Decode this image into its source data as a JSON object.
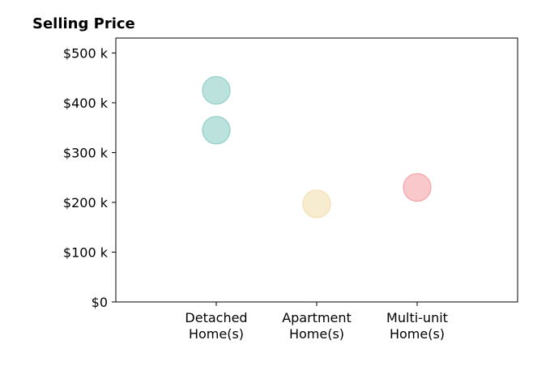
{
  "chart_data": {
    "type": "scatter",
    "title": "Selling Price",
    "xlabel": "",
    "ylabel": "",
    "categories": [
      [
        "Detached",
        "Home(s)"
      ],
      [
        "Apartment",
        "Home(s)"
      ],
      [
        "Multi-unit",
        "Home(s)"
      ]
    ],
    "ylim": [
      0,
      530000
    ],
    "yticks": [
      {
        "value": 0,
        "label": "$0"
      },
      {
        "value": 100000,
        "label": "$100 k"
      },
      {
        "value": 200000,
        "label": "$200 k"
      },
      {
        "value": 300000,
        "label": "$300 k"
      },
      {
        "value": 400000,
        "label": "$400 k"
      },
      {
        "value": 500000,
        "label": "$500 k"
      }
    ],
    "points": [
      {
        "category": 0,
        "value": 425000,
        "color": "#8fcfc7"
      },
      {
        "category": 0,
        "value": 345000,
        "color": "#8fcfc7"
      },
      {
        "category": 1,
        "value": 197000,
        "color": "#f3dfb0"
      },
      {
        "category": 2,
        "value": 230000,
        "color": "#f4a3a8"
      }
    ],
    "grid": false,
    "legend": "none"
  }
}
